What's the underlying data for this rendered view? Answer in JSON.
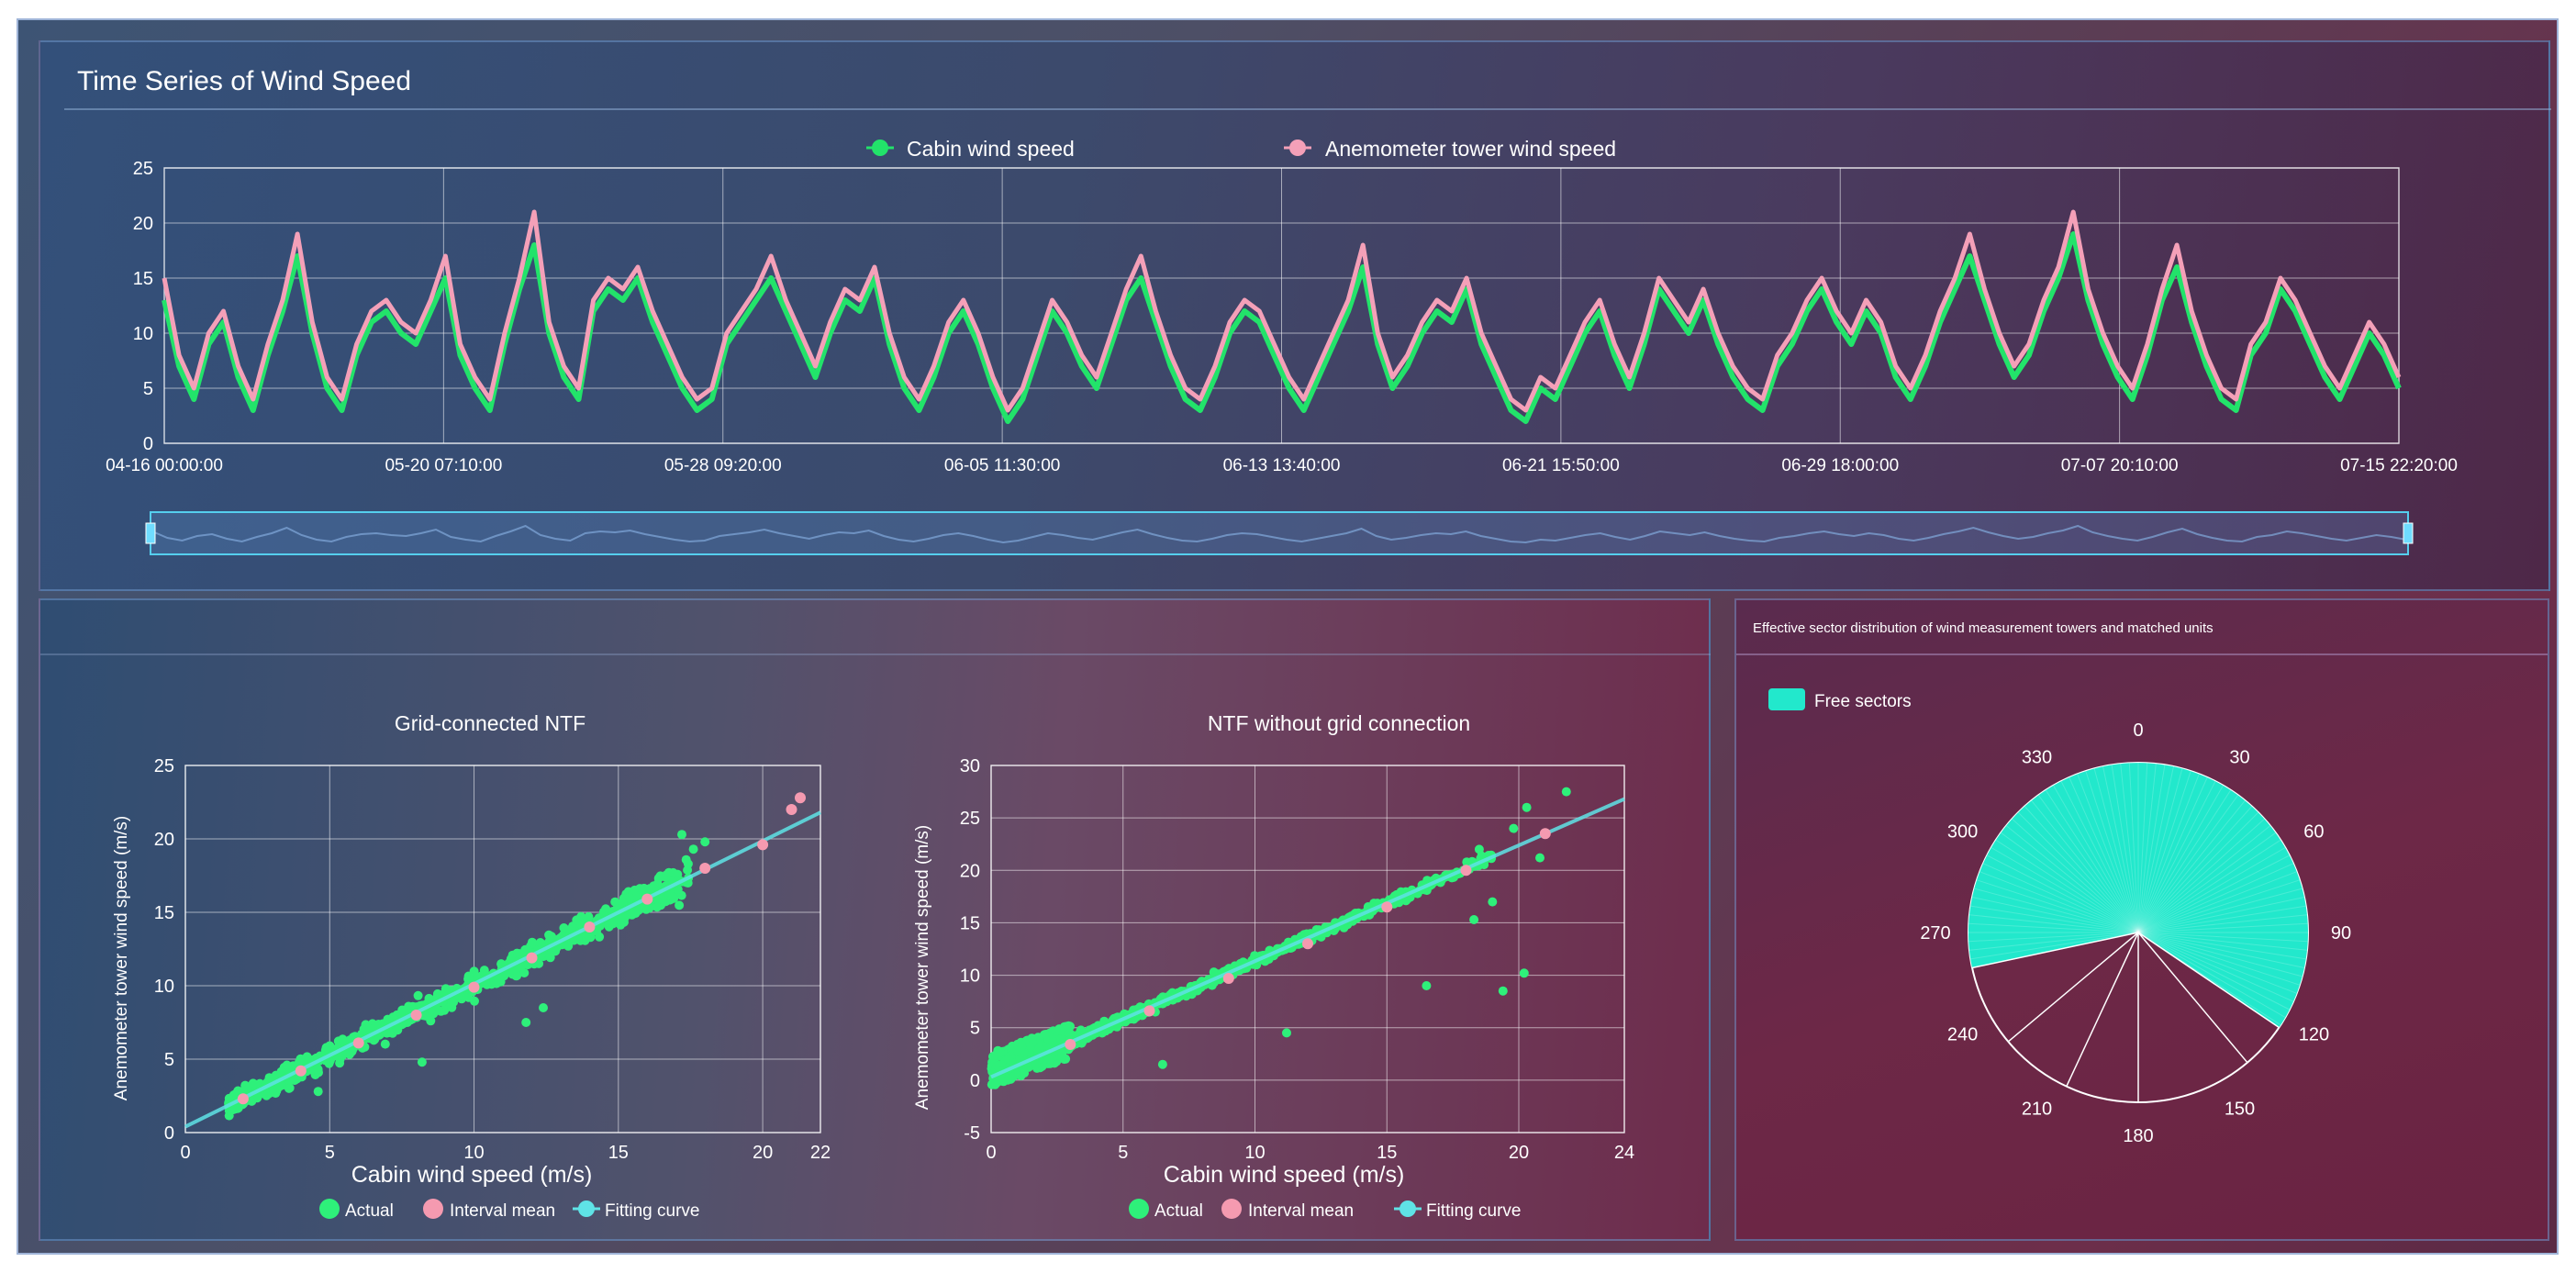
{
  "colors": {
    "cabin": "#22e36a",
    "tower": "#f4a0b8",
    "fit": "#5fe3e6",
    "actual": "#2ef07a",
    "interval_mean": "#f59ab0",
    "sector_fill": "#22e8cc"
  },
  "time_series": {
    "title": "Time Series of Wind Speed",
    "legend": [
      "Cabin wind speed",
      "Anemometer tower wind speed"
    ],
    "chart_data": {
      "type": "line",
      "ylim": [
        0,
        25
      ],
      "yticks": [
        "0",
        "5",
        "10",
        "15",
        "20",
        "25"
      ],
      "x_labels": [
        "04-16 00:00:00",
        "05-20 07:10:00",
        "05-28 09:20:00",
        "06-05 11:30:00",
        "06-13 13:40:00",
        "06-21 15:50:00",
        "06-29 18:00:00",
        "07-07 20:10:00",
        "07-15 22:20:00"
      ],
      "series": [
        {
          "name": "Cabin wind speed",
          "values": [
            13,
            7,
            4,
            9,
            11,
            6,
            3,
            8,
            12,
            17,
            10,
            5,
            3,
            8,
            11,
            12,
            10,
            9,
            12,
            15,
            8,
            5,
            3,
            9,
            14,
            18,
            10,
            6,
            4,
            12,
            14,
            13,
            15,
            11,
            8,
            5,
            3,
            4,
            9,
            11,
            13,
            15,
            12,
            9,
            6,
            10,
            13,
            12,
            15,
            9,
            5,
            3,
            6,
            10,
            12,
            9,
            5,
            2,
            4,
            8,
            12,
            10,
            7,
            5,
            9,
            13,
            15,
            11,
            7,
            4,
            3,
            6,
            10,
            12,
            11,
            8,
            5,
            3,
            6,
            9,
            12,
            16,
            9,
            5,
            7,
            10,
            12,
            11,
            14,
            9,
            6,
            3,
            2,
            5,
            4,
            7,
            10,
            12,
            8,
            5,
            9,
            14,
            12,
            10,
            13,
            9,
            6,
            4,
            3,
            7,
            9,
            12,
            14,
            11,
            9,
            12,
            10,
            6,
            4,
            7,
            11,
            14,
            17,
            13,
            9,
            6,
            8,
            12,
            15,
            19,
            13,
            9,
            6,
            4,
            8,
            13,
            16,
            11,
            7,
            4,
            3,
            8,
            10,
            14,
            12,
            9,
            6,
            4,
            7,
            10,
            8,
            5
          ]
        },
        {
          "name": "Anemometer tower wind speed",
          "values": [
            15,
            8,
            5,
            10,
            12,
            7,
            4,
            9,
            13,
            19,
            11,
            6,
            4,
            9,
            12,
            13,
            11,
            10,
            13,
            17,
            9,
            6,
            4,
            10,
            15,
            21,
            11,
            7,
            5,
            13,
            15,
            14,
            16,
            12,
            9,
            6,
            4,
            5,
            10,
            12,
            14,
            17,
            13,
            10,
            7,
            11,
            14,
            13,
            16,
            10,
            6,
            4,
            7,
            11,
            13,
            10,
            6,
            3,
            5,
            9,
            13,
            11,
            8,
            6,
            10,
            14,
            17,
            12,
            8,
            5,
            4,
            7,
            11,
            13,
            12,
            9,
            6,
            4,
            7,
            10,
            13,
            18,
            10,
            6,
            8,
            11,
            13,
            12,
            15,
            10,
            7,
            4,
            3,
            6,
            5,
            8,
            11,
            13,
            9,
            6,
            10,
            15,
            13,
            11,
            14,
            10,
            7,
            5,
            4,
            8,
            10,
            13,
            15,
            12,
            10,
            13,
            11,
            7,
            5,
            8,
            12,
            15,
            19,
            14,
            10,
            7,
            9,
            13,
            16,
            21,
            14,
            10,
            7,
            5,
            9,
            14,
            18,
            12,
            8,
            5,
            4,
            9,
            11,
            15,
            13,
            10,
            7,
            5,
            8,
            11,
            9,
            6
          ]
        }
      ]
    }
  },
  "scatter_left": {
    "title": "Grid-connected NTF",
    "xlabel": "Cabin wind speed (m/s)",
    "ylabel": "Anemometer tower wind speed (m/s)",
    "legend": [
      "Actual",
      "Interval mean",
      "Fitting curve"
    ],
    "chart_data": {
      "type": "scatter",
      "xlim": [
        0,
        22
      ],
      "ylim": [
        0,
        25
      ],
      "xticks": [
        "0",
        "5",
        "10",
        "15",
        "20",
        "22"
      ],
      "xtick_vals": [
        0,
        5,
        10,
        15,
        20,
        22
      ],
      "yticks": [
        "0",
        "5",
        "10",
        "15",
        "20",
        "25"
      ],
      "ytick_vals": [
        0,
        5,
        10,
        15,
        20,
        25
      ],
      "fit": {
        "x": [
          0,
          22
        ],
        "y": [
          0.4,
          21.8
        ]
      },
      "interval_mean": [
        [
          2,
          2.3
        ],
        [
          4,
          4.2
        ],
        [
          6,
          6.1
        ],
        [
          8,
          8.0
        ],
        [
          10,
          9.9
        ],
        [
          12,
          11.9
        ],
        [
          14,
          14.0
        ],
        [
          16,
          15.9
        ],
        [
          18,
          18.0
        ],
        [
          20,
          19.6
        ],
        [
          21,
          22.0
        ],
        [
          21.3,
          22.8
        ]
      ]
    }
  },
  "scatter_right": {
    "title": "NTF without grid connection",
    "xlabel": "Cabin wind speed (m/s)",
    "ylabel": "Anemometer tower wind speed (m/s)",
    "legend": [
      "Actual",
      "Interval mean",
      "Fitting curve"
    ],
    "chart_data": {
      "type": "scatter",
      "xlim": [
        0,
        24
      ],
      "ylim": [
        -5,
        30
      ],
      "xticks": [
        "0",
        "5",
        "10",
        "15",
        "20",
        "24"
      ],
      "xtick_vals": [
        0,
        5,
        10,
        15,
        20,
        24
      ],
      "yticks": [
        "-5",
        "0",
        "5",
        "10",
        "15",
        "20",
        "25",
        "30"
      ],
      "ytick_vals": [
        -5,
        0,
        5,
        10,
        15,
        20,
        25,
        30
      ],
      "fit": {
        "x": [
          0,
          24
        ],
        "y": [
          0.3,
          26.8
        ]
      },
      "interval_mean": [
        [
          3,
          3.4
        ],
        [
          6,
          6.6
        ],
        [
          9,
          9.7
        ],
        [
          12,
          13.0
        ],
        [
          15,
          16.5
        ],
        [
          18,
          20.0
        ],
        [
          21,
          23.5
        ]
      ]
    }
  },
  "polar": {
    "title": "Effective sector distribution of wind measurement towers and matched units",
    "legend": "Free sectors",
    "chart_data": {
      "type": "polar",
      "angle_labels": [
        "0",
        "30",
        "60",
        "90",
        "120",
        "150",
        "180",
        "210",
        "240",
        "270",
        "300",
        "330"
      ],
      "angle_vals": [
        0,
        30,
        60,
        90,
        120,
        150,
        180,
        210,
        240,
        270,
        300,
        330
      ],
      "free_sector_deg": [
        258,
        124
      ]
    }
  }
}
